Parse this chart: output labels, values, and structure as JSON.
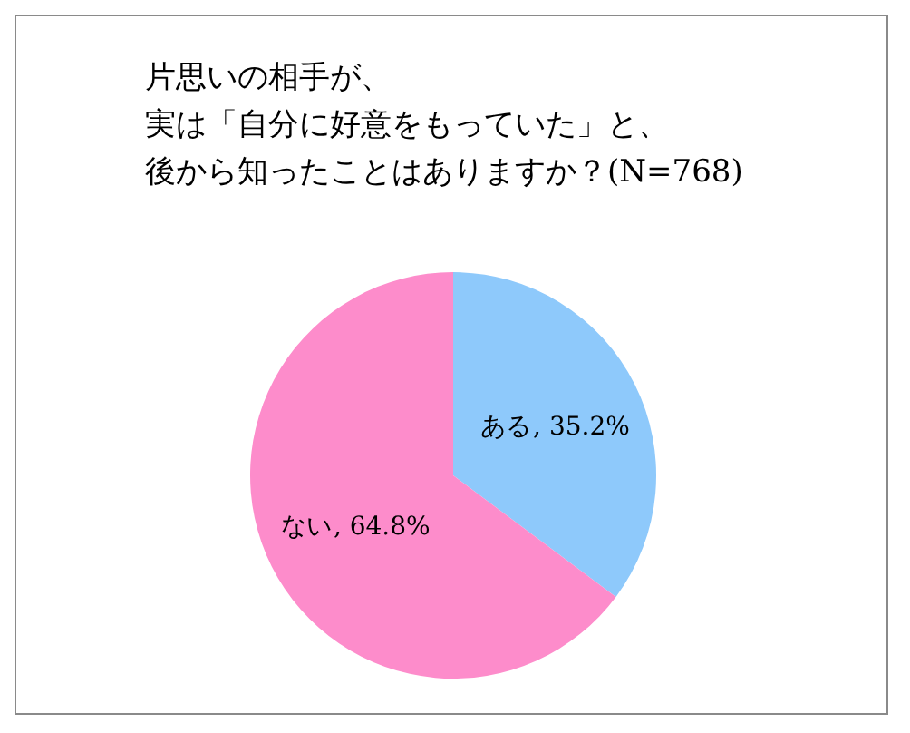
{
  "chart_data": {
    "type": "pie",
    "title": "片思いの相手が、実は「自分に好意をもっていた」と、後から知ったことはありますか？(N=768)",
    "categories": [
      "ある",
      "ない"
    ],
    "values": [
      35.2,
      64.8
    ],
    "value_labels": [
      ", 35.2%",
      ", 64.8%"
    ],
    "colors": [
      "#8ec9fb",
      "#fd8ccb"
    ]
  }
}
